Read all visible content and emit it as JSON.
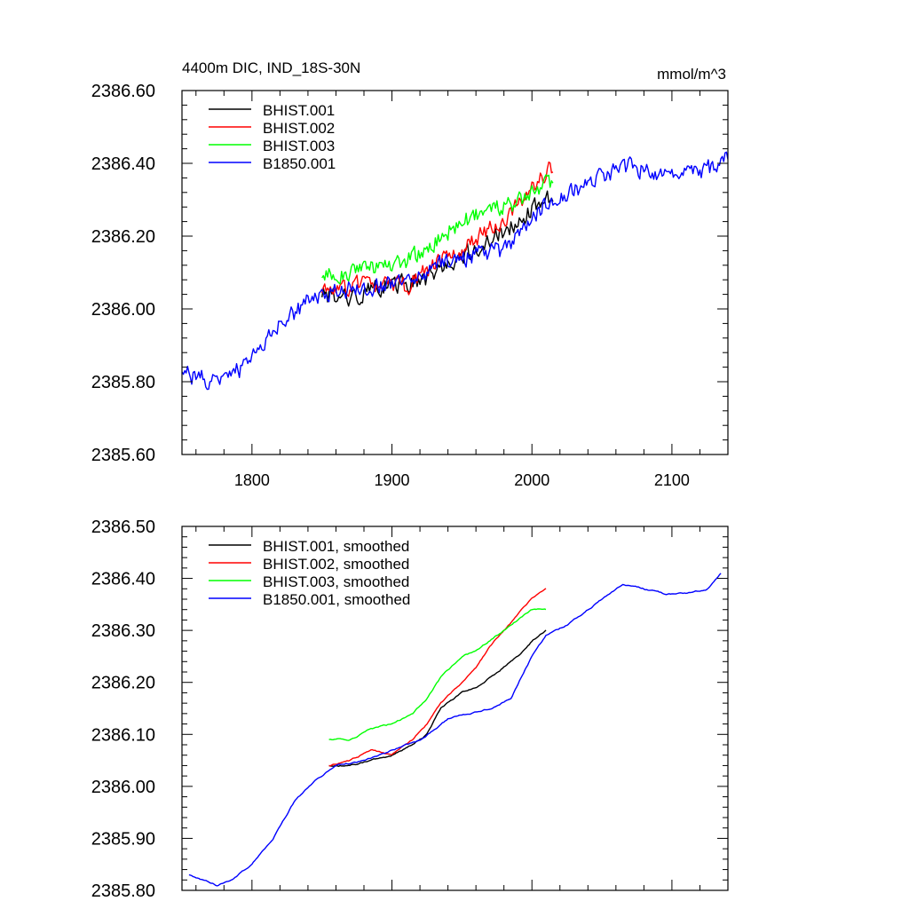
{
  "figure": {
    "title_left": "4400m DIC, IND_18S-30N",
    "title_right": "mmol/m^3"
  },
  "chart_data": [
    {
      "type": "line",
      "xlim": [
        1750,
        2140
      ],
      "ylim": [
        2385.6,
        2386.6
      ],
      "x_ticks": [
        1800,
        1900,
        2000,
        2100
      ],
      "x_tick_labels": [
        "1800",
        "1900",
        "2000",
        "2100"
      ],
      "y_ticks": [
        2385.6,
        2385.8,
        2386.0,
        2386.2,
        2386.4,
        2386.6
      ],
      "y_tick_labels": [
        "2385.60",
        "2385.80",
        "2386.00",
        "2386.20",
        "2386.40",
        "2386.60"
      ],
      "legend_position": "top-left",
      "noisy": true,
      "series": [
        {
          "name": "BHIST.001",
          "color": "#000000",
          "x": [
            1850,
            1870,
            1890,
            1910,
            1930,
            1950,
            1970,
            1990,
            2000,
            2015
          ],
          "y": [
            2386.04,
            2386.03,
            2386.06,
            2386.07,
            2386.09,
            2386.15,
            2386.19,
            2386.24,
            2386.27,
            2386.31
          ]
        },
        {
          "name": "BHIST.002",
          "color": "#ff0000",
          "x": [
            1850,
            1870,
            1890,
            1910,
            1930,
            1950,
            1970,
            1990,
            2000,
            2015
          ],
          "y": [
            2386.05,
            2386.06,
            2386.07,
            2386.06,
            2386.12,
            2386.16,
            2386.22,
            2386.28,
            2386.33,
            2386.39
          ]
        },
        {
          "name": "BHIST.003",
          "color": "#00ff00",
          "x": [
            1850,
            1870,
            1890,
            1910,
            1930,
            1950,
            1970,
            1990,
            2000,
            2015
          ],
          "y": [
            2386.09,
            2386.1,
            2386.12,
            2386.13,
            2386.18,
            2386.24,
            2386.27,
            2386.29,
            2386.32,
            2386.35
          ]
        },
        {
          "name": "B1850.001",
          "color": "#0000ff",
          "x": [
            1750,
            1760,
            1780,
            1800,
            1820,
            1840,
            1860,
            1880,
            1900,
            1920,
            1940,
            1960,
            1980,
            2000,
            2010,
            2030,
            2050,
            2070,
            2090,
            2110,
            2130,
            2140
          ],
          "y": [
            2385.83,
            2385.81,
            2385.8,
            2385.86,
            2385.96,
            2386.02,
            2386.05,
            2386.06,
            2386.07,
            2386.09,
            2386.13,
            2386.15,
            2386.16,
            2386.24,
            2386.29,
            2386.32,
            2386.37,
            2386.39,
            2386.37,
            2386.37,
            2386.39,
            2386.42
          ]
        }
      ]
    },
    {
      "type": "line",
      "xlim": [
        1750,
        2140
      ],
      "ylim": [
        2385.8,
        2386.5
      ],
      "x_ticks": [
        1800,
        1900,
        2000,
        2100
      ],
      "x_tick_labels": [],
      "y_ticks": [
        2385.8,
        2385.9,
        2386.0,
        2386.1,
        2386.2,
        2386.3,
        2386.4,
        2386.5
      ],
      "y_tick_labels": [
        "2385.80",
        "2385.90",
        "2386.00",
        "2386.10",
        "2386.20",
        "2386.30",
        "2386.40",
        "2386.50"
      ],
      "legend_position": "top-left",
      "noisy": false,
      "series": [
        {
          "name": "BHIST.001, smoothed",
          "color": "#000000",
          "x": [
            1855,
            1870,
            1885,
            1900,
            1915,
            1925,
            1935,
            1950,
            1960,
            1970,
            1980,
            1990,
            2000,
            2010
          ],
          "y": [
            2386.04,
            2386.04,
            2386.05,
            2386.06,
            2386.08,
            2386.1,
            2386.15,
            2386.18,
            2386.19,
            2386.21,
            2386.23,
            2386.25,
            2386.28,
            2386.3
          ]
        },
        {
          "name": "BHIST.002, smoothed",
          "color": "#ff0000",
          "x": [
            1855,
            1870,
            1885,
            1900,
            1915,
            1925,
            1935,
            1950,
            1960,
            1970,
            1980,
            1990,
            2000,
            2010
          ],
          "y": [
            2386.04,
            2386.05,
            2386.07,
            2386.06,
            2386.09,
            2386.12,
            2386.16,
            2386.2,
            2386.23,
            2386.27,
            2386.3,
            2386.33,
            2386.36,
            2386.38
          ]
        },
        {
          "name": "BHIST.003, smoothed",
          "color": "#00ff00",
          "x": [
            1855,
            1870,
            1885,
            1900,
            1915,
            1925,
            1935,
            1950,
            1960,
            1970,
            1980,
            1990,
            2000,
            2010
          ],
          "y": [
            2386.09,
            2386.09,
            2386.11,
            2386.12,
            2386.14,
            2386.17,
            2386.21,
            2386.25,
            2386.26,
            2386.28,
            2386.3,
            2386.32,
            2386.34,
            2386.34
          ]
        },
        {
          "name": "B1850.001, smoothed",
          "color": "#0000ff",
          "x": [
            1755,
            1765,
            1775,
            1785,
            1800,
            1815,
            1830,
            1845,
            1860,
            1880,
            1900,
            1920,
            1940,
            1955,
            1970,
            1985,
            2000,
            2010,
            2025,
            2045,
            2065,
            2080,
            2095,
            2110,
            2125,
            2135
          ],
          "y": [
            2385.83,
            2385.82,
            2385.81,
            2385.82,
            2385.85,
            2385.9,
            2385.97,
            2386.01,
            2386.04,
            2386.05,
            2386.07,
            2386.09,
            2386.13,
            2386.14,
            2386.15,
            2386.17,
            2386.25,
            2386.29,
            2386.31,
            2386.35,
            2386.39,
            2386.38,
            2386.37,
            2386.37,
            2386.38,
            2386.41
          ]
        }
      ]
    }
  ]
}
